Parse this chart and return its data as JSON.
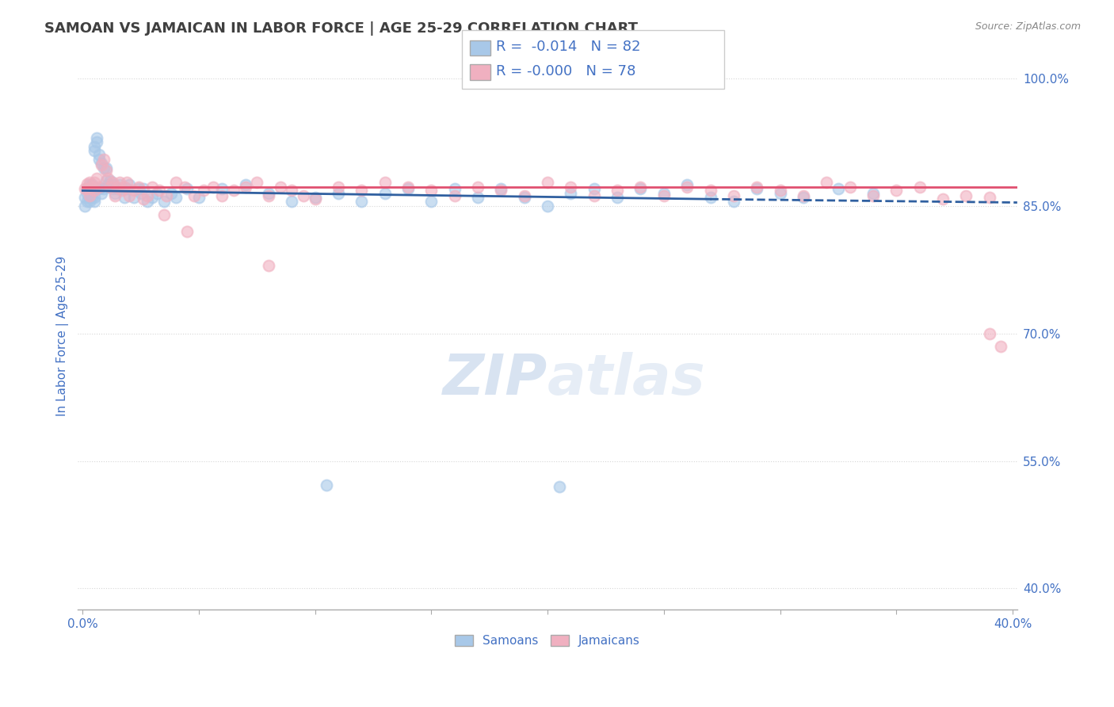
{
  "title": "SAMOAN VS JAMAICAN IN LABOR FORCE | AGE 25-29 CORRELATION CHART",
  "source_text": "Source: ZipAtlas.com",
  "ylabel": "In Labor Force | Age 25-29",
  "x_tick_labels_shown": [
    "0.0%",
    "40.0%"
  ],
  "x_tick_vals": [
    0.0,
    0.05,
    0.1,
    0.15,
    0.2,
    0.25,
    0.3,
    0.35,
    0.4
  ],
  "y_tick_labels": [
    "40.0%",
    "55.0%",
    "70.0%",
    "85.0%",
    "100.0%"
  ],
  "y_tick_vals": [
    0.4,
    0.55,
    0.7,
    0.85,
    1.0
  ],
  "xlim": [
    -0.002,
    0.402
  ],
  "ylim": [
    0.375,
    1.02
  ],
  "legend_blue_r": "R =  -0.014",
  "legend_blue_n": "N = 82",
  "legend_pink_r": "R = -0.000",
  "legend_pink_n": "N = 78",
  "blue_color": "#A8C8E8",
  "pink_color": "#F0B0C0",
  "trendline_blue": "#3060A0",
  "trendline_pink": "#E05070",
  "grid_color": "#CCCCCC",
  "axis_label_color": "#4472C4",
  "title_color": "#404040",
  "watermark_color": "#C8D8EC",
  "dot_size": 100,
  "blue_x": [
    0.001,
    0.001,
    0.002,
    0.002,
    0.002,
    0.003,
    0.003,
    0.003,
    0.003,
    0.004,
    0.004,
    0.004,
    0.004,
    0.005,
    0.005,
    0.005,
    0.005,
    0.006,
    0.006,
    0.006,
    0.007,
    0.007,
    0.007,
    0.008,
    0.008,
    0.009,
    0.009,
    0.01,
    0.01,
    0.011,
    0.012,
    0.013,
    0.013,
    0.014,
    0.015,
    0.016,
    0.017,
    0.018,
    0.019,
    0.02,
    0.022,
    0.024,
    0.025,
    0.026,
    0.028,
    0.03,
    0.032,
    0.035,
    0.038,
    0.04,
    0.045,
    0.05,
    0.06,
    0.07,
    0.08,
    0.09,
    0.1,
    0.11,
    0.12,
    0.13,
    0.14,
    0.15,
    0.16,
    0.17,
    0.18,
    0.19,
    0.2,
    0.21,
    0.22,
    0.23,
    0.24,
    0.25,
    0.26,
    0.27,
    0.28,
    0.29,
    0.3,
    0.31,
    0.325,
    0.34,
    0.105,
    0.205
  ],
  "blue_y": [
    0.85,
    0.86,
    0.855,
    0.865,
    0.87,
    0.855,
    0.86,
    0.87,
    0.875,
    0.86,
    0.865,
    0.87,
    0.875,
    0.92,
    0.915,
    0.86,
    0.855,
    0.93,
    0.925,
    0.87,
    0.91,
    0.905,
    0.87,
    0.9,
    0.865,
    0.895,
    0.87,
    0.895,
    0.88,
    0.875,
    0.88,
    0.87,
    0.875,
    0.865,
    0.87,
    0.875,
    0.87,
    0.86,
    0.87,
    0.875,
    0.86,
    0.87,
    0.865,
    0.87,
    0.855,
    0.86,
    0.865,
    0.855,
    0.865,
    0.86,
    0.87,
    0.86,
    0.87,
    0.875,
    0.865,
    0.855,
    0.86,
    0.865,
    0.855,
    0.865,
    0.87,
    0.855,
    0.87,
    0.86,
    0.87,
    0.86,
    0.85,
    0.865,
    0.87,
    0.86,
    0.87,
    0.865,
    0.875,
    0.86,
    0.855,
    0.87,
    0.865,
    0.86,
    0.87,
    0.865,
    0.522,
    0.52
  ],
  "pink_x": [
    0.001,
    0.002,
    0.002,
    0.003,
    0.003,
    0.004,
    0.005,
    0.005,
    0.006,
    0.007,
    0.008,
    0.009,
    0.01,
    0.011,
    0.012,
    0.013,
    0.014,
    0.015,
    0.016,
    0.017,
    0.018,
    0.019,
    0.02,
    0.022,
    0.024,
    0.026,
    0.028,
    0.03,
    0.033,
    0.036,
    0.04,
    0.044,
    0.048,
    0.052,
    0.056,
    0.06,
    0.065,
    0.07,
    0.075,
    0.08,
    0.085,
    0.09,
    0.095,
    0.1,
    0.11,
    0.12,
    0.13,
    0.14,
    0.15,
    0.16,
    0.17,
    0.18,
    0.19,
    0.2,
    0.21,
    0.22,
    0.23,
    0.24,
    0.25,
    0.26,
    0.27,
    0.28,
    0.29,
    0.3,
    0.31,
    0.32,
    0.33,
    0.34,
    0.35,
    0.36,
    0.37,
    0.38,
    0.39,
    0.395,
    0.035,
    0.045,
    0.08,
    0.39
  ],
  "pink_y": [
    0.87,
    0.876,
    0.87,
    0.862,
    0.878,
    0.872,
    0.868,
    0.878,
    0.882,
    0.872,
    0.898,
    0.905,
    0.892,
    0.882,
    0.872,
    0.878,
    0.862,
    0.872,
    0.878,
    0.868,
    0.872,
    0.878,
    0.862,
    0.868,
    0.872,
    0.858,
    0.862,
    0.872,
    0.868,
    0.862,
    0.878,
    0.872,
    0.862,
    0.868,
    0.872,
    0.862,
    0.868,
    0.872,
    0.878,
    0.862,
    0.872,
    0.868,
    0.862,
    0.858,
    0.872,
    0.868,
    0.878,
    0.872,
    0.868,
    0.862,
    0.872,
    0.868,
    0.862,
    0.878,
    0.872,
    0.862,
    0.868,
    0.872,
    0.862,
    0.872,
    0.868,
    0.862,
    0.872,
    0.868,
    0.862,
    0.878,
    0.872,
    0.862,
    0.868,
    0.872,
    0.858,
    0.862,
    0.86,
    0.685,
    0.84,
    0.82,
    0.78,
    0.7
  ]
}
